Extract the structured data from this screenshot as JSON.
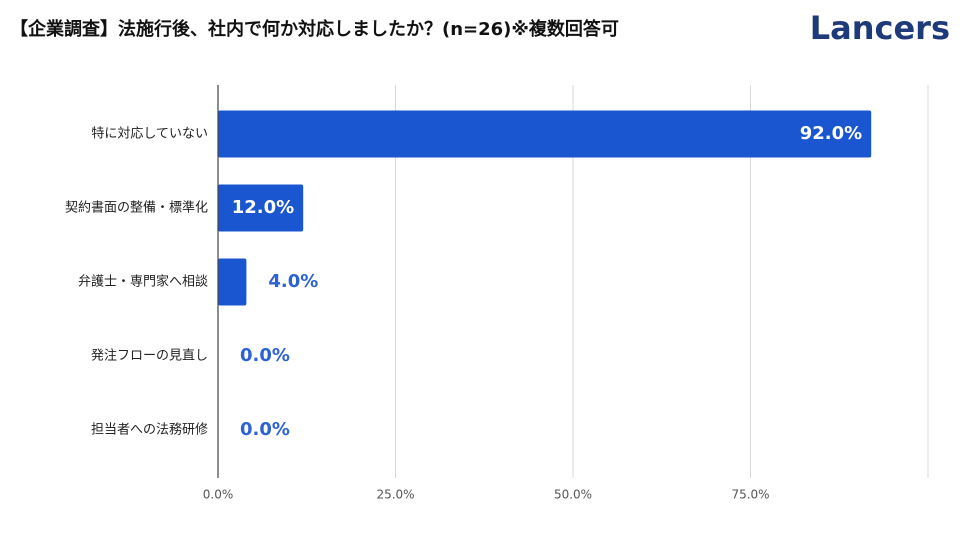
{
  "chart_data": {
    "type": "hbar",
    "title": "【企業調査】法施行後、社内で何か対応しましたか？(n=26)※複数回答可",
    "categories": [
      "特に対応していない",
      "契約書面の整備・標準化",
      "弁護士・専門家へ相談",
      "発注フローの見直し",
      "担当者への法務研修"
    ],
    "values": [
      92,
      12,
      4,
      0,
      0
    ],
    "value_labels": [
      "92.0%",
      "12.0%",
      "4.0%",
      "0.0%",
      "0.0%"
    ],
    "color": "#1a56d0",
    "xlim": [
      0,
      100
    ],
    "xticks": [
      {
        "value": 0,
        "label": "0.0%"
      },
      {
        "value": 25,
        "label": "25.0%"
      },
      {
        "value": 50,
        "label": "50.0%"
      },
      {
        "value": 75,
        "label": "75.0%"
      }
    ],
    "grid": true
  },
  "logo": "Lancers"
}
